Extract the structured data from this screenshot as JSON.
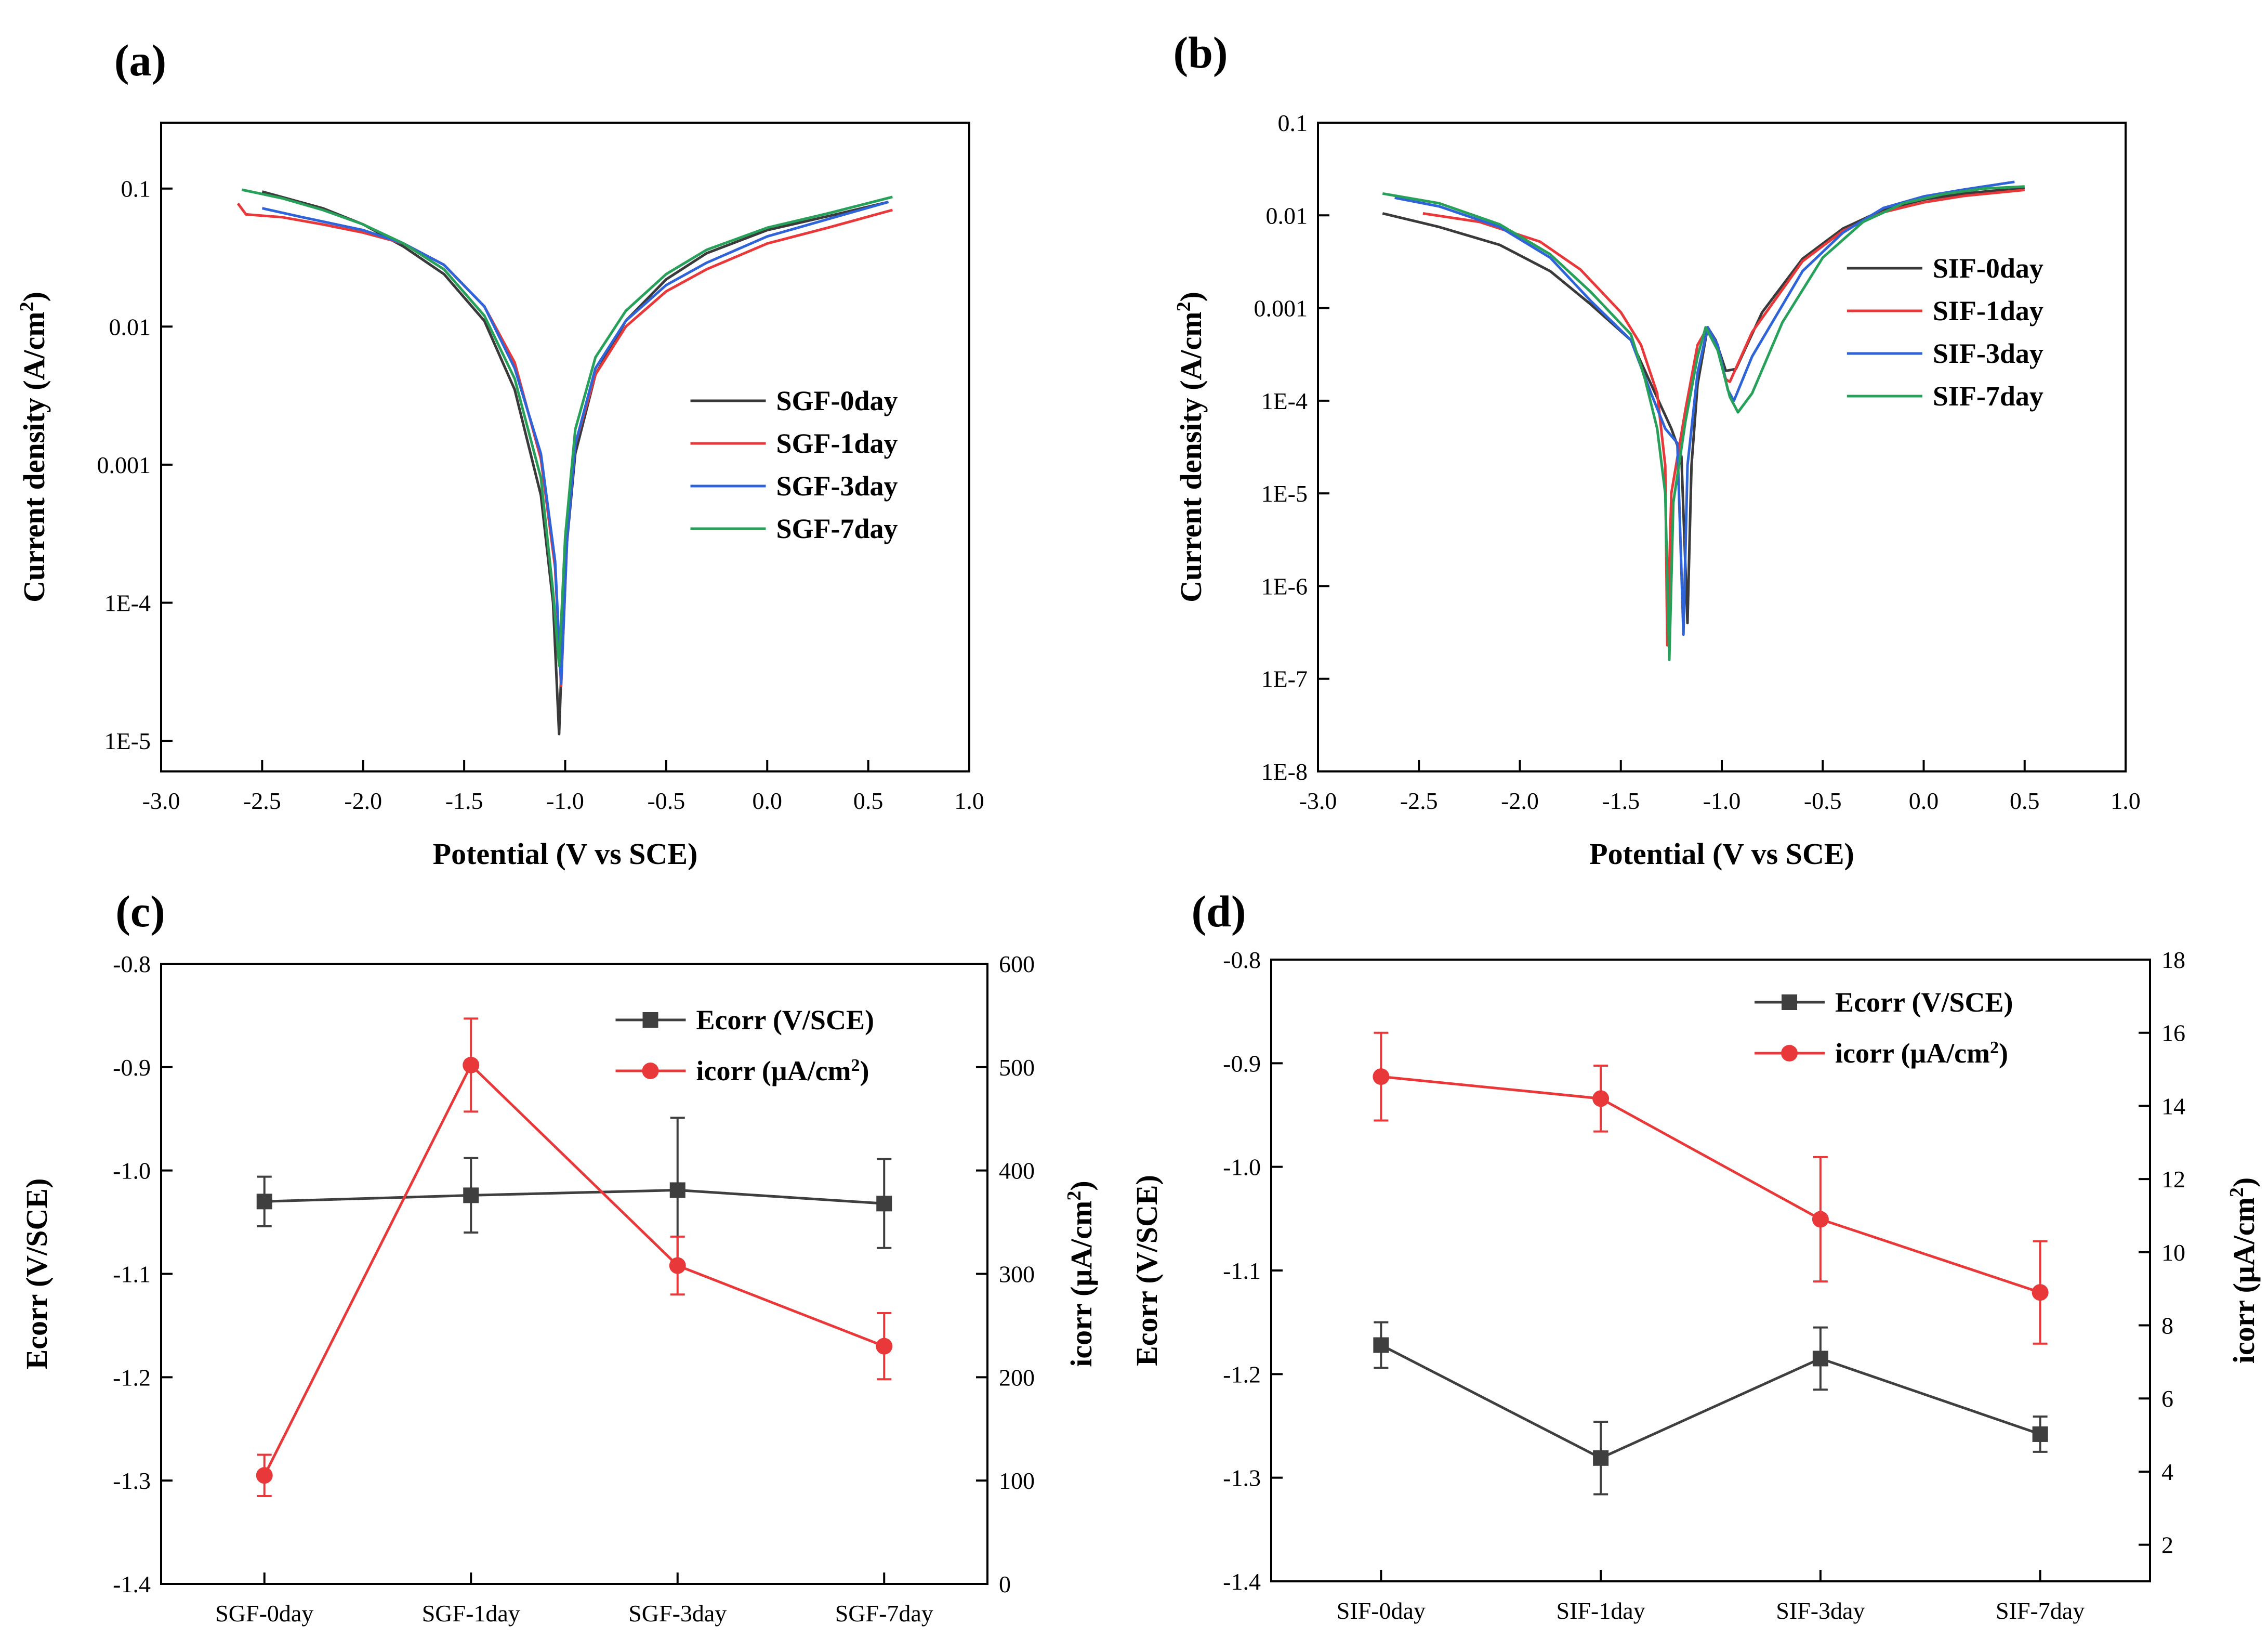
{
  "panels": [
    {
      "id": "a",
      "label": "(a)"
    },
    {
      "id": "b",
      "label": "(b)"
    },
    {
      "id": "c",
      "label": "(c)"
    },
    {
      "id": "d",
      "label": "(d)"
    }
  ],
  "chart_data": [
    {
      "id": "a",
      "type": "line",
      "scale_y": "log",
      "title": "",
      "xlabel": "Potential (V vs SCE)",
      "ylabel": "Current density (A/cm^2)",
      "xlim": [
        -3.0,
        1.0
      ],
      "ylim": [
        6e-06,
        0.3
      ],
      "xticks": [
        -3.0,
        -2.5,
        -2.0,
        -1.5,
        -1.0,
        -0.5,
        0.0,
        0.5,
        1.0
      ],
      "xtick_labels": [
        "-3.0",
        "-2.5",
        "-2.0",
        "-1.5",
        "-1.0",
        "-0.5",
        "0.0",
        "0.5",
        "1.0"
      ],
      "yticks": [
        1e-05,
        0.0001,
        0.001,
        0.01,
        0.1
      ],
      "ytick_labels": [
        "1E-5",
        "1E-4",
        "0.001",
        "0.01",
        "0.1"
      ],
      "legend_position": "center-right",
      "series": [
        {
          "name": "SGF-0day",
          "color": "#3a3a3a",
          "points": [
            [
              -2.5,
              0.095
            ],
            [
              -2.2,
              0.072
            ],
            [
              -2.0,
              0.055
            ],
            [
              -1.8,
              0.038
            ],
            [
              -1.6,
              0.024
            ],
            [
              -1.4,
              0.011
            ],
            [
              -1.25,
              0.0035
            ],
            [
              -1.12,
              0.0006
            ],
            [
              -1.06,
              0.0001
            ],
            [
              -1.03,
              1.12e-05
            ],
            [
              -1.0,
              0.0002
            ],
            [
              -0.95,
              0.0012
            ],
            [
              -0.85,
              0.0045
            ],
            [
              -0.7,
              0.011
            ],
            [
              -0.5,
              0.022
            ],
            [
              -0.3,
              0.034
            ],
            [
              0.0,
              0.05
            ],
            [
              0.3,
              0.063
            ],
            [
              0.6,
              0.08
            ]
          ]
        },
        {
          "name": "SGF-1day",
          "color": "#e8383a",
          "points": [
            [
              -2.62,
              0.078
            ],
            [
              -2.58,
              0.065
            ],
            [
              -2.4,
              0.062
            ],
            [
              -2.2,
              0.055
            ],
            [
              -2.0,
              0.048
            ],
            [
              -1.8,
              0.04
            ],
            [
              -1.6,
              0.028
            ],
            [
              -1.4,
              0.014
            ],
            [
              -1.25,
              0.0055
            ],
            [
              -1.12,
              0.0011
            ],
            [
              -1.05,
              0.00018
            ],
            [
              -1.02,
              2.5e-05
            ],
            [
              -0.99,
              0.0003
            ],
            [
              -0.95,
              0.0014
            ],
            [
              -0.85,
              0.0045
            ],
            [
              -0.7,
              0.01
            ],
            [
              -0.5,
              0.018
            ],
            [
              -0.3,
              0.026
            ],
            [
              0.0,
              0.04
            ],
            [
              0.3,
              0.052
            ],
            [
              0.62,
              0.07
            ]
          ]
        },
        {
          "name": "SGF-3day",
          "color": "#2f64d8",
          "points": [
            [
              -2.5,
              0.072
            ],
            [
              -2.3,
              0.062
            ],
            [
              -2.0,
              0.05
            ],
            [
              -1.8,
              0.04
            ],
            [
              -1.6,
              0.028
            ],
            [
              -1.4,
              0.014
            ],
            [
              -1.25,
              0.005
            ],
            [
              -1.12,
              0.0012
            ],
            [
              -1.05,
              0.0002
            ],
            [
              -1.02,
              2.6e-05
            ],
            [
              -0.99,
              0.0003
            ],
            [
              -0.95,
              0.0014
            ],
            [
              -0.85,
              0.005
            ],
            [
              -0.7,
              0.011
            ],
            [
              -0.5,
              0.02
            ],
            [
              -0.3,
              0.029
            ],
            [
              0.0,
              0.045
            ],
            [
              0.3,
              0.06
            ],
            [
              0.6,
              0.08
            ]
          ]
        },
        {
          "name": "SGF-7day",
          "color": "#27a05a",
          "points": [
            [
              -2.6,
              0.098
            ],
            [
              -2.4,
              0.085
            ],
            [
              -2.2,
              0.07
            ],
            [
              -2.0,
              0.055
            ],
            [
              -1.8,
              0.04
            ],
            [
              -1.6,
              0.026
            ],
            [
              -1.4,
              0.012
            ],
            [
              -1.25,
              0.0042
            ],
            [
              -1.12,
              0.0008
            ],
            [
              -1.06,
              0.00012
            ],
            [
              -1.03,
              3.5e-05
            ],
            [
              -1.0,
              0.0003
            ],
            [
              -0.95,
              0.0018
            ],
            [
              -0.85,
              0.006
            ],
            [
              -0.7,
              0.013
            ],
            [
              -0.5,
              0.024
            ],
            [
              -0.3,
              0.036
            ],
            [
              0.0,
              0.052
            ],
            [
              0.3,
              0.066
            ],
            [
              0.62,
              0.087
            ]
          ]
        }
      ]
    },
    {
      "id": "b",
      "type": "line",
      "scale_y": "log",
      "title": "",
      "xlabel": "Potential (V vs SCE)",
      "ylabel": "Current density (A/cm^2)",
      "xlim": [
        -3.0,
        1.0
      ],
      "ylim": [
        1e-08,
        0.1
      ],
      "xticks": [
        -3.0,
        -2.5,
        -2.0,
        -1.5,
        -1.0,
        -0.5,
        0.0,
        0.5,
        1.0
      ],
      "xtick_labels": [
        "-3.0",
        "-2.5",
        "-2.0",
        "-1.5",
        "-1.0",
        "-0.5",
        "0.0",
        "0.5",
        "1.0"
      ],
      "yticks": [
        1e-08,
        1e-07,
        1e-06,
        1e-05,
        0.0001,
        0.001,
        0.01,
        0.1
      ],
      "ytick_labels": [
        "1E-8",
        "1E-7",
        "1E-6",
        "1E-5",
        "1E-4",
        "0.001",
        "0.01",
        "0.1"
      ],
      "legend_position": "center-right",
      "series": [
        {
          "name": "SIF-0day",
          "color": "#3a3a3a",
          "points": [
            [
              -2.68,
              0.0105
            ],
            [
              -2.4,
              0.0075
            ],
            [
              -2.1,
              0.0048
            ],
            [
              -1.85,
              0.0025
            ],
            [
              -1.65,
              0.0011
            ],
            [
              -1.45,
              0.00045
            ],
            [
              -1.35,
              0.00015
            ],
            [
              -1.25,
              5e-05
            ],
            [
              -1.2,
              2.5e-05
            ],
            [
              -1.17,
              4e-07
            ],
            [
              -1.15,
              2e-05
            ],
            [
              -1.12,
              0.00015
            ],
            [
              -1.07,
              0.00062
            ],
            [
              -1.03,
              0.00045
            ],
            [
              -0.98,
              0.00021
            ],
            [
              -0.93,
              0.00022
            ],
            [
              -0.8,
              0.0009
            ],
            [
              -0.6,
              0.0034
            ],
            [
              -0.4,
              0.0072
            ],
            [
              -0.2,
              0.0115
            ],
            [
              0.0,
              0.0148
            ],
            [
              0.2,
              0.0172
            ],
            [
              0.5,
              0.0198
            ]
          ]
        },
        {
          "name": "SIF-1day",
          "color": "#e8383a",
          "points": [
            [
              -2.48,
              0.0105
            ],
            [
              -2.2,
              0.0085
            ],
            [
              -1.9,
              0.0052
            ],
            [
              -1.7,
              0.0026
            ],
            [
              -1.5,
              0.0009
            ],
            [
              -1.4,
              0.0004
            ],
            [
              -1.32,
              0.00012
            ],
            [
              -1.28,
              2e-05
            ],
            [
              -1.27,
              2.3e-07
            ],
            [
              -1.25,
              1e-05
            ],
            [
              -1.18,
              8e-05
            ],
            [
              -1.12,
              0.0004
            ],
            [
              -1.07,
              0.00062
            ],
            [
              -1.03,
              0.00042
            ],
            [
              -0.98,
              0.00017
            ],
            [
              -0.96,
              0.00016
            ],
            [
              -0.85,
              0.00055
            ],
            [
              -0.6,
              0.0032
            ],
            [
              -0.4,
              0.0068
            ],
            [
              -0.2,
              0.0108
            ],
            [
              0.0,
              0.0138
            ],
            [
              0.2,
              0.0162
            ],
            [
              0.5,
              0.0188
            ]
          ]
        },
        {
          "name": "SIF-3day",
          "color": "#2f64d8",
          "points": [
            [
              -2.62,
              0.0155
            ],
            [
              -2.4,
              0.0125
            ],
            [
              -2.1,
              0.0075
            ],
            [
              -1.85,
              0.0035
            ],
            [
              -1.65,
              0.0012
            ],
            [
              -1.45,
              0.00045
            ],
            [
              -1.35,
              0.00012
            ],
            [
              -1.28,
              5e-05
            ],
            [
              -1.22,
              3.5e-05
            ],
            [
              -1.19,
              3e-07
            ],
            [
              -1.17,
              2e-05
            ],
            [
              -1.12,
              0.0002
            ],
            [
              -1.07,
              0.00062
            ],
            [
              -1.02,
              0.0004
            ],
            [
              -0.97,
              0.00013
            ],
            [
              -0.94,
              0.0001
            ],
            [
              -0.85,
              0.0003
            ],
            [
              -0.6,
              0.0025
            ],
            [
              -0.4,
              0.0065
            ],
            [
              -0.2,
              0.012
            ],
            [
              0.0,
              0.016
            ],
            [
              0.2,
              0.019
            ],
            [
              0.45,
              0.023
            ]
          ]
        },
        {
          "name": "SIF-7day",
          "color": "#27a05a",
          "points": [
            [
              -2.68,
              0.0172
            ],
            [
              -2.4,
              0.0135
            ],
            [
              -2.1,
              0.008
            ],
            [
              -1.85,
              0.0038
            ],
            [
              -1.65,
              0.0015
            ],
            [
              -1.45,
              0.00052
            ],
            [
              -1.38,
              0.00017
            ],
            [
              -1.32,
              5e-05
            ],
            [
              -1.28,
              1e-05
            ],
            [
              -1.26,
              1.6e-07
            ],
            [
              -1.24,
              8e-06
            ],
            [
              -1.18,
              6e-05
            ],
            [
              -1.12,
              0.0003
            ],
            [
              -1.08,
              0.00062
            ],
            [
              -1.02,
              0.00035
            ],
            [
              -0.96,
              0.00011
            ],
            [
              -0.92,
              7.5e-05
            ],
            [
              -0.85,
              0.00012
            ],
            [
              -0.7,
              0.0007
            ],
            [
              -0.5,
              0.0035
            ],
            [
              -0.3,
              0.0085
            ],
            [
              -0.1,
              0.0135
            ],
            [
              0.1,
              0.017
            ],
            [
              0.3,
              0.0195
            ],
            [
              0.5,
              0.0205
            ]
          ]
        }
      ]
    },
    {
      "id": "c",
      "type": "line",
      "dual_axis": true,
      "title": "",
      "xlabel": "",
      "ylabel": "Ecorr (V/SCE)",
      "ylabel_right": "icorr (μA/cm^2)",
      "categories": [
        "SGF-0day",
        "SGF-1day",
        "SGF-3day",
        "SGF-7day"
      ],
      "ylim": [
        -1.4,
        -0.8
      ],
      "ylim_right": [
        0,
        600
      ],
      "yticks": [
        -1.4,
        -1.3,
        -1.2,
        -1.1,
        -1.0,
        -0.9,
        -0.8
      ],
      "ytick_labels": [
        "-1.4",
        "-1.3",
        "-1.2",
        "-1.1",
        "-1.0",
        "-0.9",
        "-0.8"
      ],
      "yticks_right": [
        0,
        100,
        200,
        300,
        400,
        500,
        600
      ],
      "ytick_labels_right": [
        "0",
        "100",
        "200",
        "300",
        "400",
        "500",
        "600"
      ],
      "legend_position": "top-right",
      "series": [
        {
          "name": "Ecorr (V/SCE)",
          "color": "#3f3f3f",
          "marker": "square",
          "axis": "left",
          "values": [
            -1.03,
            -1.024,
            -1.019,
            -1.032
          ],
          "errors": [
            0.024,
            0.036,
            0.07,
            0.043
          ]
        },
        {
          "name": "icorr (μA/cm2)",
          "color": "#e8383a",
          "marker": "circle",
          "axis": "right",
          "values": [
            105,
            502,
            308,
            230
          ],
          "errors": [
            20,
            45,
            28,
            32
          ]
        }
      ]
    },
    {
      "id": "d",
      "type": "line",
      "dual_axis": true,
      "title": "",
      "xlabel": "",
      "ylabel": "Ecorr (V/SCE)",
      "ylabel_right": "icorr (μA/cm^2)",
      "categories": [
        "SIF-0day",
        "SIF-1day",
        "SIF-3day",
        "SIF-7day"
      ],
      "ylim": [
        -1.4,
        -0.8
      ],
      "ylim_right": [
        1,
        18
      ],
      "yticks": [
        -1.4,
        -1.3,
        -1.2,
        -1.1,
        -1.0,
        -0.9,
        -0.8
      ],
      "ytick_labels": [
        "-1.4",
        "-1.3",
        "-1.2",
        "-1.1",
        "-1.0",
        "-0.9",
        "-0.8"
      ],
      "yticks_right": [
        2,
        4,
        6,
        8,
        10,
        12,
        14,
        16,
        18
      ],
      "ytick_labels_right": [
        "2",
        "4",
        "6",
        "8",
        "10",
        "12",
        "14",
        "16",
        "18"
      ],
      "legend_position": "top-right",
      "series": [
        {
          "name": "Ecorr (V/SCE)",
          "color": "#3f3f3f",
          "marker": "square",
          "axis": "left",
          "values": [
            -1.172,
            -1.281,
            -1.185,
            -1.258
          ],
          "errors": [
            0.022,
            0.035,
            0.03,
            0.017
          ]
        },
        {
          "name": "icorr (μA/cm2)",
          "color": "#e8383a",
          "marker": "circle",
          "axis": "right",
          "values": [
            14.8,
            14.2,
            10.9,
            8.9
          ],
          "errors": [
            1.2,
            0.9,
            1.7,
            1.4
          ]
        }
      ]
    }
  ]
}
